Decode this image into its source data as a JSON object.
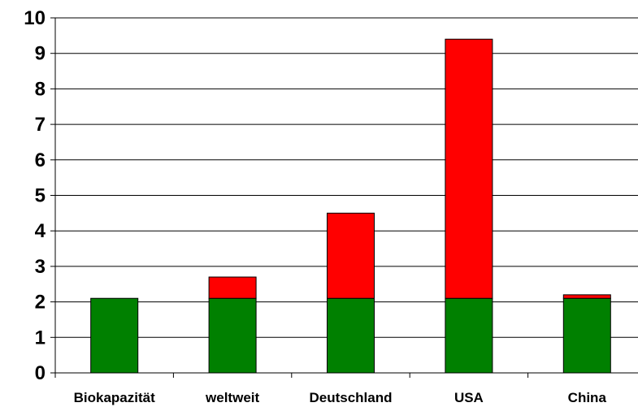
{
  "chart_data": {
    "type": "bar",
    "stacked": true,
    "categories": [
      "Biokapazität",
      "weltweit",
      "Deutschland",
      "USA",
      "China"
    ],
    "series": [
      {
        "values": [
          2.1,
          2.1,
          2.1,
          2.1,
          2.1
        ],
        "color": "#008000"
      },
      {
        "values": [
          0.0,
          0.6,
          2.4,
          7.3,
          0.1
        ],
        "color": "#ff0000"
      }
    ],
    "yticks": [
      0,
      1,
      2,
      3,
      4,
      5,
      6,
      7,
      8,
      9,
      10
    ],
    "ylim": [
      0,
      10
    ],
    "grid": true,
    "title": "",
    "xlabel": "",
    "ylabel": ""
  }
}
